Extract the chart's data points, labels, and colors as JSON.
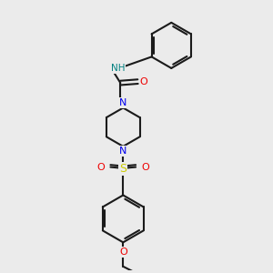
{
  "background_color": "#ebebeb",
  "bond_color": "#1a1a1a",
  "N_color": "#0000ee",
  "O_color": "#ee0000",
  "S_color": "#cccc00",
  "NH_color": "#008080",
  "figsize": [
    3.0,
    3.0
  ],
  "dpi": 100,
  "xlim": [
    0,
    10
  ],
  "ylim": [
    0,
    10
  ]
}
